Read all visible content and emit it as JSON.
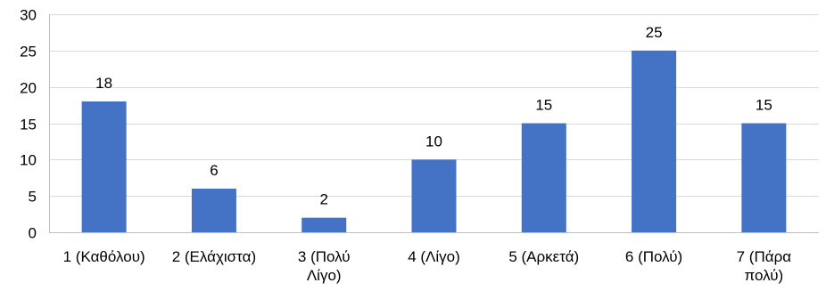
{
  "chart_data": {
    "type": "bar",
    "categories": [
      [
        "1 (Καθόλου)"
      ],
      [
        "2 (Ελάχιστα)"
      ],
      [
        "3 (Πολύ",
        "Λίγο)"
      ],
      [
        "4 (Λίγο)"
      ],
      [
        "5 (Αρκετά)"
      ],
      [
        "6 (Πολύ)"
      ],
      [
        "7 (Πάρα",
        "πολύ)"
      ]
    ],
    "values": [
      18,
      6,
      2,
      10,
      15,
      25,
      15
    ],
    "data_labels": [
      "18",
      "6",
      "2",
      "10",
      "15",
      "25",
      "15"
    ],
    "yticks": [
      0,
      5,
      10,
      15,
      20,
      25,
      30
    ],
    "ylim": [
      0,
      30
    ],
    "title": "",
    "xlabel": "",
    "ylabel": "",
    "grid": true,
    "bar_color": "#4472c4",
    "grid_color": "#d9d9d9"
  }
}
